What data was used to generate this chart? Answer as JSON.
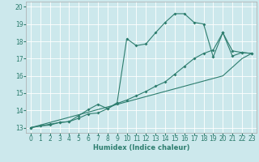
{
  "xlabel": "Humidex (Indice chaleur)",
  "bg_color": "#cce8ec",
  "line_color": "#2d7d6e",
  "xlim": [
    -0.5,
    23.5
  ],
  "ylim": [
    12.7,
    20.3
  ],
  "xticks": [
    0,
    1,
    2,
    3,
    4,
    5,
    6,
    7,
    8,
    9,
    10,
    11,
    12,
    13,
    14,
    15,
    16,
    17,
    18,
    19,
    20,
    21,
    22,
    23
  ],
  "yticks": [
    13,
    14,
    15,
    16,
    17,
    18,
    19,
    20
  ],
  "line1_x": [
    0,
    1,
    2,
    3,
    4,
    5,
    6,
    7,
    8,
    9,
    10,
    11,
    12,
    13,
    14,
    15,
    16,
    17,
    18,
    19,
    20,
    21,
    22,
    23
  ],
  "line1_y": [
    13.0,
    13.15,
    13.3,
    13.45,
    13.6,
    13.75,
    13.9,
    14.05,
    14.2,
    14.35,
    14.5,
    14.65,
    14.8,
    14.95,
    15.1,
    15.25,
    15.4,
    15.55,
    15.7,
    15.85,
    16.0,
    16.5,
    17.0,
    17.3
  ],
  "line2_x": [
    0,
    1,
    2,
    3,
    4,
    5,
    6,
    7,
    8,
    9,
    10,
    11,
    12,
    13,
    14,
    15,
    16,
    17,
    18,
    19,
    20,
    21,
    22,
    23
  ],
  "line2_y": [
    13.0,
    13.1,
    13.15,
    13.3,
    13.35,
    13.55,
    13.8,
    13.85,
    14.1,
    14.4,
    14.6,
    14.85,
    15.1,
    15.4,
    15.65,
    16.1,
    16.55,
    17.0,
    17.3,
    17.5,
    18.5,
    17.15,
    17.35,
    17.3
  ],
  "line3_x": [
    0,
    1,
    2,
    3,
    4,
    5,
    6,
    7,
    8,
    9,
    10,
    11,
    12,
    13,
    14,
    15,
    16,
    17,
    18,
    19,
    20,
    21,
    22,
    23
  ],
  "line3_y": [
    13.0,
    13.1,
    13.2,
    13.3,
    13.35,
    13.7,
    14.05,
    14.35,
    14.1,
    14.45,
    18.15,
    17.75,
    17.85,
    18.5,
    19.1,
    19.6,
    19.6,
    19.1,
    19.0,
    17.1,
    18.5,
    17.45,
    17.35,
    17.3
  ]
}
